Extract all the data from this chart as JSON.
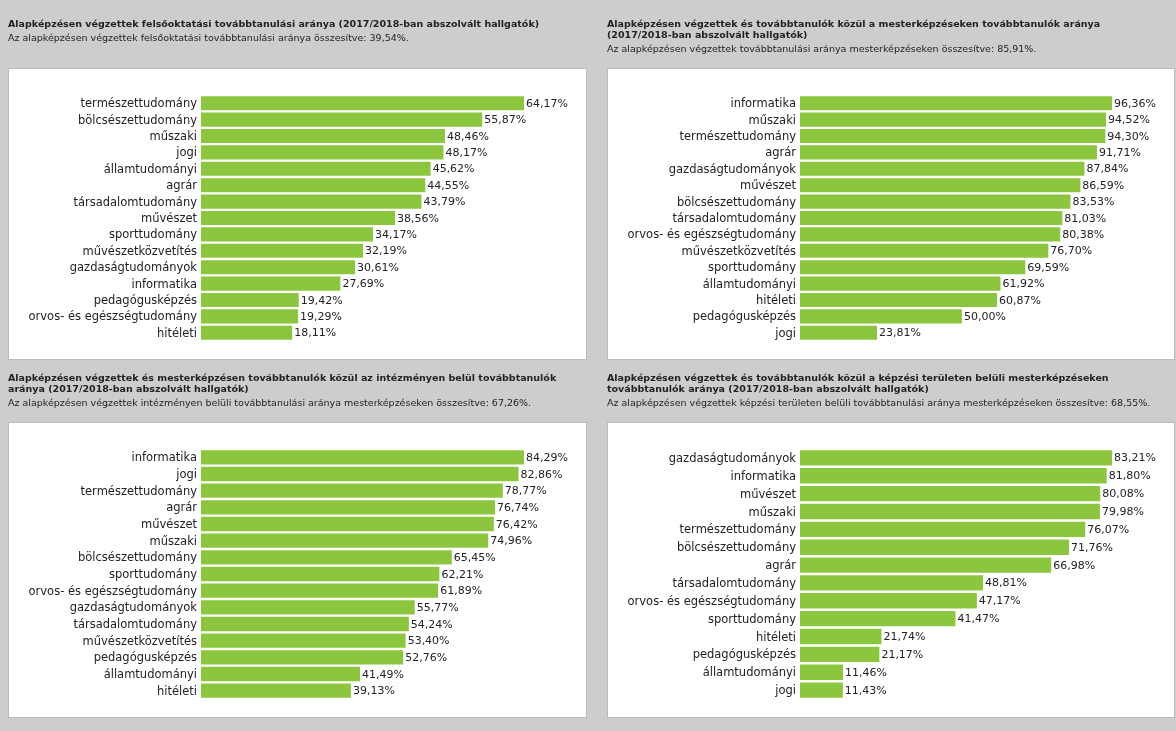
{
  "chart_data": [
    {
      "type": "bar",
      "orientation": "horizontal",
      "title": "Alapképzésen végzettek felsőoktatási továbbtanulási aránya (2017/2018-ban abszolvált hallgatók)",
      "subtitle": "Az alapképzésen végzettek felsőoktatási továbbtanulási aránya összesítve: 39,54%.",
      "color": "#8cc63e",
      "categories": [
        "természettudomány",
        "bölcsészettudomány",
        "műszaki",
        "jogi",
        "államtudományi",
        "agrár",
        "társadalomtudomány",
        "művészet",
        "sporttudomány",
        "művészetközvetítés",
        "gazdaságtudományok",
        "informatika",
        "pedagógusképzés",
        "orvos- és egészségtudomány",
        "hitéleti"
      ],
      "values": [
        64.17,
        55.87,
        48.46,
        48.17,
        45.62,
        44.55,
        43.79,
        38.56,
        34.17,
        32.19,
        30.61,
        27.69,
        19.42,
        19.29,
        18.11
      ],
      "value_labels": [
        "64,17%",
        "55,87%",
        "48,46%",
        "48,17%",
        "45,62%",
        "44,55%",
        "43,79%",
        "38,56%",
        "34,17%",
        "32,19%",
        "30,61%",
        "27,69%",
        "19,42%",
        "19,29%",
        "18,11%"
      ]
    },
    {
      "type": "bar",
      "orientation": "horizontal",
      "title": "Alapképzésen végzettek és továbbtanulók közül a mesterképzéseken továbbtanulók aránya (2017/2018-ban abszolvált hallgatók)",
      "subtitle": "Az alapképzésen végzettek továbbtanulási aránya mesterképzéseken összesítve: 85,91%.",
      "color": "#8cc63e",
      "categories": [
        "informatika",
        "műszaki",
        "természettudomány",
        "agrár",
        "gazdaságtudományok",
        "művészet",
        "bölcsészettudomány",
        "társadalomtudomány",
        "orvos- és egészségtudomány",
        "művészetközvetítés",
        "sporttudomány",
        "államtudományi",
        "hitéleti",
        "pedagógusképzés",
        "jogi"
      ],
      "values": [
        96.36,
        94.52,
        94.3,
        91.71,
        87.84,
        86.59,
        83.53,
        81.03,
        80.38,
        76.7,
        69.59,
        61.92,
        60.87,
        50.0,
        23.81
      ],
      "value_labels": [
        "96,36%",
        "94,52%",
        "94,30%",
        "91,71%",
        "87,84%",
        "86,59%",
        "83,53%",
        "81,03%",
        "80,38%",
        "76,70%",
        "69,59%",
        "61,92%",
        "60,87%",
        "50,00%",
        "23,81%"
      ]
    },
    {
      "type": "bar",
      "orientation": "horizontal",
      "title": "Alapképzésen végzettek és mesterképzésen továbbtanulók közül az intézményen belül továbbtanulók aránya (2017/2018-ban abszolvált hallgatók)",
      "subtitle": "Az alapképzésen végzettek intézményen belüli továbbtanulási aránya mesterképzéseken összesítve: 67,26%.",
      "color": "#8cc63e",
      "categories": [
        "informatika",
        "jogi",
        "természettudomány",
        "agrár",
        "művészet",
        "műszaki",
        "bölcsészettudomány",
        "sporttudomány",
        "orvos- és egészségtudomány",
        "gazdaságtudományok",
        "társadalomtudomány",
        "művészetközvetítés",
        "pedagógusképzés",
        "államtudományi",
        "hitéleti"
      ],
      "values": [
        84.29,
        82.86,
        78.77,
        76.74,
        76.42,
        74.96,
        65.45,
        62.21,
        61.89,
        55.77,
        54.24,
        53.4,
        52.76,
        41.49,
        39.13
      ],
      "value_labels": [
        "84,29%",
        "82,86%",
        "78,77%",
        "76,74%",
        "76,42%",
        "74,96%",
        "65,45%",
        "62,21%",
        "61,89%",
        "55,77%",
        "54,24%",
        "53,40%",
        "52,76%",
        "41,49%",
        "39,13%"
      ]
    },
    {
      "type": "bar",
      "orientation": "horizontal",
      "title": "Alapképzésen végzettek és továbbtanulók közül a képzési területen belüli mesterképzéseken továbbtanulók aránya (2017/2018-ban abszolvált hallgatók)",
      "subtitle": "Az alapképzésen végzettek képzési területen belüli továbbtanulási aránya mesterképzéseken összesítve: 68,55%.",
      "color": "#8cc63e",
      "categories": [
        "gazdaságtudományok",
        "informatika",
        "művészet",
        "műszaki",
        "természettudomány",
        "bölcsészettudomány",
        "agrár",
        "társadalomtudomány",
        "orvos- és egészségtudomány",
        "sporttudomány",
        "hitéleti",
        "pedagógusképzés",
        "államtudományi",
        "jogi"
      ],
      "values": [
        83.21,
        81.8,
        80.08,
        79.98,
        76.07,
        71.76,
        66.98,
        48.81,
        47.17,
        41.47,
        21.74,
        21.17,
        11.46,
        11.43
      ],
      "value_labels": [
        "83,21%",
        "81,80%",
        "80,08%",
        "79,98%",
        "76,07%",
        "71,76%",
        "66,98%",
        "48,81%",
        "47,17%",
        "41,47%",
        "21,74%",
        "21,17%",
        "11,46%",
        "11,43%"
      ]
    }
  ]
}
